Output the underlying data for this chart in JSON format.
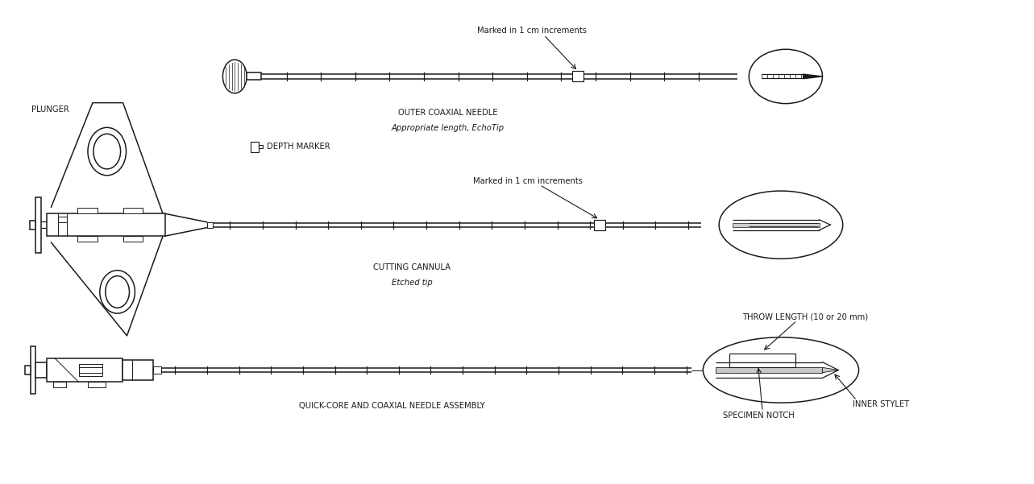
{
  "bg_color": "#ffffff",
  "line_color": "#1a1a1a",
  "line_width": 1.1,
  "labels": {
    "outer_needle_title": "OUTER COAXIAL NEEDLE",
    "outer_needle_sub": "Appropriate length, EchoTip",
    "depth_marker": "DEPTH MARKER",
    "marked_top": "Marked in 1 cm increments",
    "marked_mid": "Marked in 1 cm increments",
    "cutting_cannula": "CUTTING CANNULA",
    "cutting_sub": "Etched tip",
    "plunger": "PLUNGER",
    "assembly": "QUICK-CORE AND COAXIAL NEEDLE ASSEMBLY",
    "throw_length": "THROW LENGTH (10 or 20 mm)",
    "specimen_notch": "SPECIMEN NOTCH",
    "inner_stylet": "INNER STYLET"
  },
  "font_sizes": {
    "label": 7.2,
    "sub": 7.2
  }
}
